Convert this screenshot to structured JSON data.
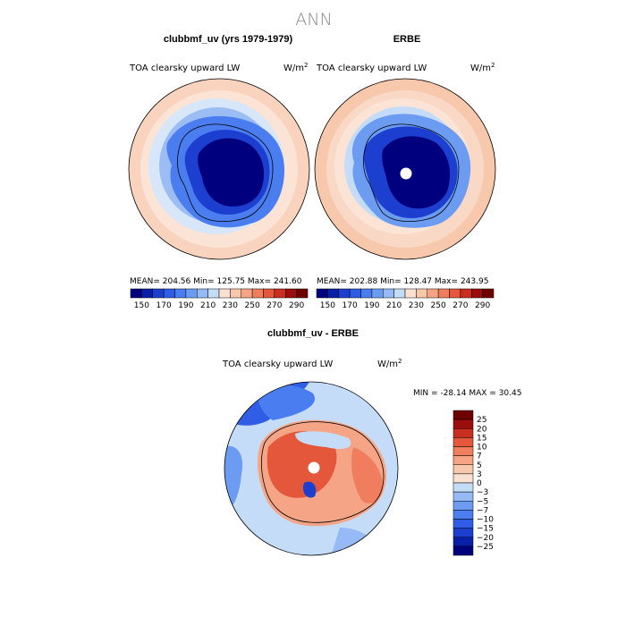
{
  "page_title": "ANN",
  "chart_data": [
    {
      "type": "heatmap",
      "title": "clubbmf_uv (yrs 1979-1979)",
      "variable_label": "TOA clearsky upward LW",
      "units": "W/m",
      "units_exp": "2",
      "stats": {
        "mean_label": "MEAN=",
        "mean": "204.56",
        "min_label": "Min=",
        "min": "125.75",
        "max_label": "Max=",
        "max": "241.60"
      },
      "levels": [
        150,
        160,
        170,
        180,
        190,
        200,
        210,
        220,
        230,
        240,
        250,
        260,
        270,
        280,
        290
      ],
      "tick_labels": [
        "150",
        "170",
        "190",
        "210",
        "230",
        "250",
        "270",
        "290"
      ],
      "colors": [
        "#00007f",
        "#0a1fa8",
        "#1c3fd0",
        "#2f5de6",
        "#4a7ef0",
        "#6c9cf2",
        "#95baf5",
        "#c5dcf8",
        "#f9e1d1",
        "#f8c8ac",
        "#f5a585",
        "#f07e5e",
        "#e4573b",
        "#c92e1e",
        "#9c0d0d",
        "#6e0000"
      ]
    },
    {
      "type": "heatmap",
      "title": "ERBE",
      "variable_label": "TOA clearsky upward LW",
      "units": "W/m",
      "units_exp": "2",
      "stats": {
        "mean_label": "MEAN=",
        "mean": "202.88",
        "min_label": "Min=",
        "min": "128.47",
        "max_label": "Max=",
        "max": "243.95"
      },
      "levels": [
        150,
        160,
        170,
        180,
        190,
        200,
        210,
        220,
        230,
        240,
        250,
        260,
        270,
        280,
        290
      ],
      "tick_labels": [
        "150",
        "170",
        "190",
        "210",
        "230",
        "250",
        "270",
        "290"
      ],
      "colors": [
        "#00007f",
        "#0a1fa8",
        "#1c3fd0",
        "#2f5de6",
        "#4a7ef0",
        "#6c9cf2",
        "#95baf5",
        "#c5dcf8",
        "#f9e1d1",
        "#f8c8ac",
        "#f5a585",
        "#f07e5e",
        "#e4573b",
        "#c92e1e",
        "#9c0d0d",
        "#6e0000"
      ]
    },
    {
      "type": "heatmap",
      "title": "clubbmf_uv - ERBE",
      "variable_label": "TOA clearsky upward LW",
      "units": "W/m",
      "units_exp": "2",
      "stats": {
        "min_label": "MIN =",
        "min": "-28.14",
        "max_label": "MAX =",
        "max": "30.45"
      },
      "levels": [
        -25,
        -20,
        -15,
        -10,
        -7,
        -5,
        -3,
        0,
        3,
        5,
        7,
        10,
        15,
        20,
        25
      ],
      "tick_labels": [
        "25",
        "20",
        "15",
        "10",
        "7",
        "5",
        "3",
        "0",
        "−3",
        "−5",
        "−7",
        "−10",
        "−15",
        "−20",
        "−25"
      ],
      "colors": [
        "#00007f",
        "#0a1fa8",
        "#1c3fd0",
        "#2f5de6",
        "#4a7ef0",
        "#6c9cf2",
        "#95baf5",
        "#c5dcf8",
        "#f9e1d1",
        "#f8c8ac",
        "#f5a585",
        "#f07e5e",
        "#e4573b",
        "#c92e1e",
        "#9c0d0d",
        "#6e0000"
      ]
    }
  ]
}
